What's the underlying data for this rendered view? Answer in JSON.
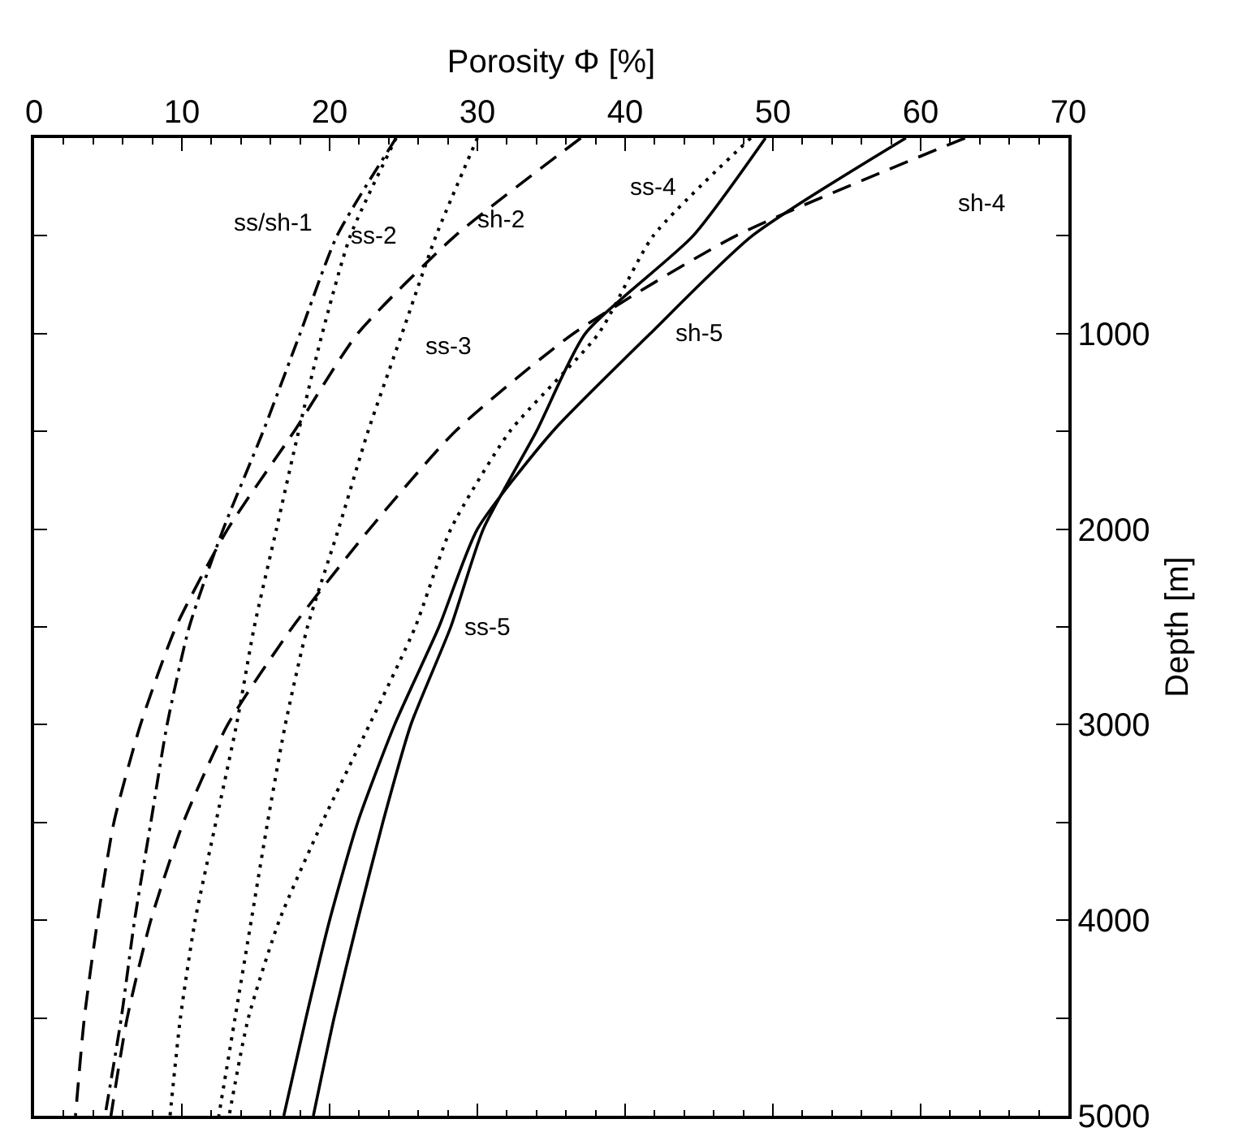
{
  "chart_data": {
    "type": "line",
    "xlabel": "Porosity Φ [%]",
    "ylabel": "Depth [m]",
    "xlim": [
      0,
      70
    ],
    "xticks": [
      0,
      10,
      20,
      30,
      40,
      50,
      60,
      70
    ],
    "ylim": [
      5000,
      0
    ],
    "yticks": [
      1000,
      2000,
      3000,
      4000,
      5000
    ],
    "grid": false,
    "legend": false,
    "marker": "none",
    "series": [
      {
        "name": "ss/sh-1",
        "color": "#000000",
        "line_style": "dashdot",
        "x": [
          24.5,
          20.5,
          18,
          15.5,
          12.8,
          10.5,
          9.0,
          7.9,
          6.8,
          5.9,
          4.8
        ],
        "values": [
          0,
          500,
          1000,
          1500,
          2000,
          2500,
          3000,
          3500,
          4000,
          4500,
          5000
        ]
      },
      {
        "name": "ss-2",
        "color": "#000000",
        "line_style": "dotted",
        "x": [
          24.5,
          21.4,
          19.5,
          17.9,
          16.4,
          14.9,
          13.7,
          12.3,
          10.9,
          9.9,
          9.2
        ],
        "values": [
          0,
          500,
          1000,
          1500,
          2000,
          2500,
          3000,
          3500,
          4000,
          4500,
          5000
        ]
      },
      {
        "name": "ss-3",
        "color": "#000000",
        "line_style": "dotted",
        "x": [
          30,
          27.2,
          24.9,
          22.6,
          20.6,
          18.5,
          17,
          15.8,
          14.7,
          13.6,
          12.5
        ],
        "values": [
          0,
          500,
          1000,
          1500,
          2000,
          2500,
          3000,
          3500,
          4000,
          4500,
          5000
        ]
      },
      {
        "name": "sh-2",
        "color": "#000000",
        "line_style": "dashed",
        "x": [
          37,
          28.5,
          21.9,
          17.6,
          13.1,
          9.6,
          7.2,
          5.4,
          4.3,
          3.4,
          2.8
        ],
        "values": [
          0,
          500,
          1000,
          1500,
          2000,
          2500,
          3000,
          3500,
          4000,
          4500,
          5000
        ]
      },
      {
        "name": "ss-4",
        "color": "#000000",
        "line_style": "dotted",
        "x": [
          48.5,
          41.9,
          38.2,
          32.2,
          28.2,
          25.8,
          22.7,
          19.5,
          16.6,
          14.5,
          13.2
        ],
        "values": [
          0,
          500,
          1000,
          1500,
          2000,
          2500,
          3000,
          3500,
          4000,
          4500,
          5000
        ]
      },
      {
        "name": "ss-5",
        "color": "#000000",
        "line_style": "solid",
        "x": [
          49.5,
          44.6,
          37.3,
          34,
          30.4,
          28.2,
          25.5,
          23.6,
          21.9,
          20.3,
          18.9
        ],
        "values": [
          0,
          500,
          1000,
          1500,
          2000,
          2500,
          3000,
          3500,
          4000,
          4500,
          5000
        ]
      },
      {
        "name": "sh-5",
        "color": "#000000",
        "line_style": "solid",
        "x": [
          59,
          48.6,
          41.7,
          35.1,
          30,
          27.4,
          24.4,
          21.9,
          20,
          18.4,
          16.9
        ],
        "values": [
          0,
          500,
          1000,
          1500,
          2000,
          2500,
          3000,
          3500,
          4000,
          4500,
          5000
        ]
      },
      {
        "name": "sh-4",
        "color": "#000000",
        "line_style": "dashed",
        "x": [
          63,
          47.5,
          36.5,
          28.5,
          22.7,
          17.5,
          13.1,
          10.1,
          7.9,
          6.3,
          5.2
        ],
        "values": [
          0,
          500,
          1000,
          1500,
          2000,
          2500,
          3000,
          3500,
          4000,
          4500,
          5000
        ]
      }
    ]
  }
}
